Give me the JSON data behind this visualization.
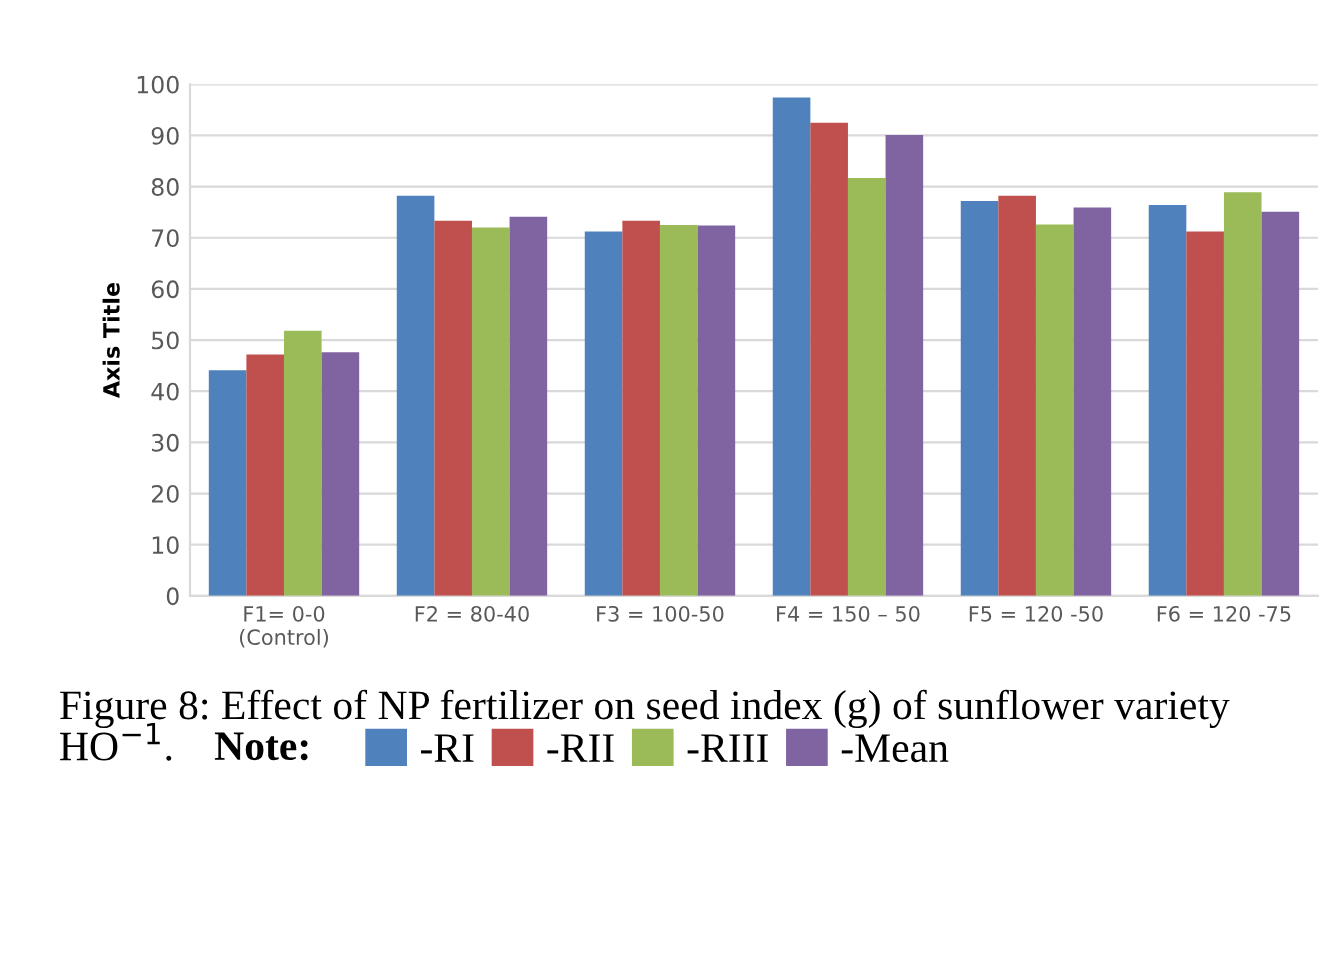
{
  "chart_data": {
    "type": "bar",
    "categories": [
      "F1= 0-0\n(Control)",
      "F2 = 80-40",
      "F3 = 100-50",
      "F4 = 150 – 50",
      "F5 = 120 -50",
      "F6 = 120 -75"
    ],
    "series": [
      {
        "name": "-RI",
        "color": "#4f81bd",
        "values": [
          44.1,
          78.2,
          71.2,
          97.4,
          77.2,
          76.4
        ]
      },
      {
        "name": "-RII",
        "color": "#c0504d",
        "values": [
          47.2,
          73.3,
          73.3,
          92.5,
          78.2,
          71.2
        ]
      },
      {
        "name": "-RIII",
        "color": "#9bbb59",
        "values": [
          51.8,
          72.0,
          72.5,
          81.7,
          72.6,
          78.9
        ]
      },
      {
        "name": "-Mean",
        "color": "#8064a2",
        "values": [
          47.6,
          74.1,
          72.4,
          90.1,
          75.9,
          75.1
        ]
      }
    ],
    "ylabel": "Axis Title",
    "ylim": [
      0,
      100
    ],
    "yticks": [
      0,
      10,
      20,
      30,
      40,
      50,
      60,
      70,
      80,
      90,
      100
    ],
    "grid": "y",
    "legend": "bottom",
    "legend_title": "Note:",
    "annotations": [
      "Figure 8: Effect of NP fertilizer on seed index (g) of sunflower variety HO$^{−1}$."
    ]
  }
}
